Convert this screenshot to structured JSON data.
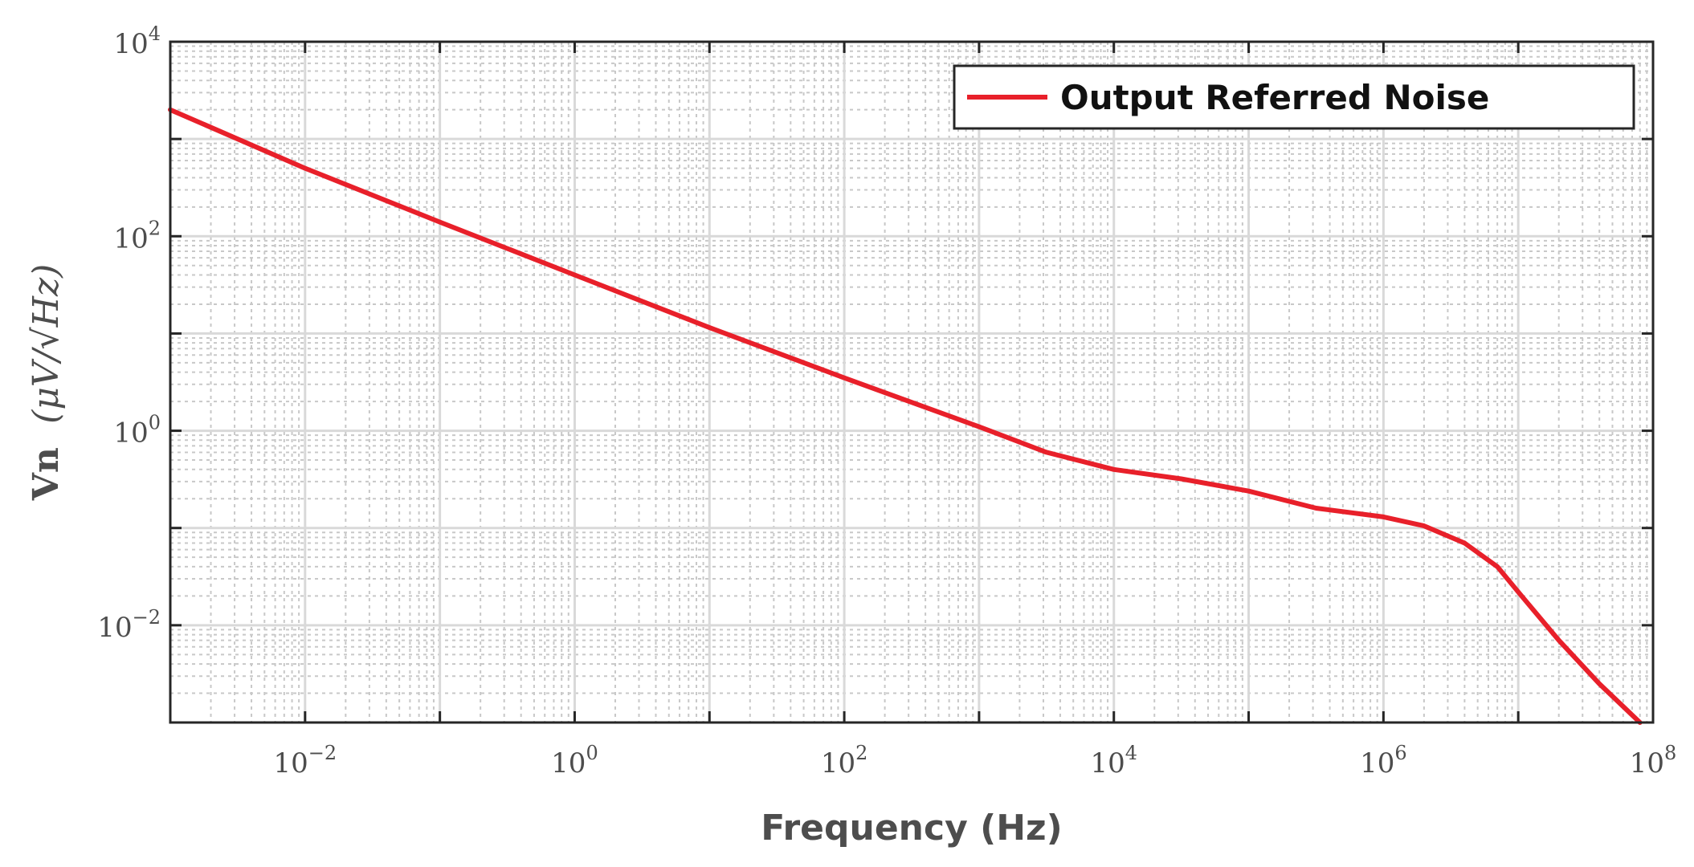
{
  "chart_data": {
    "type": "line",
    "xscale": "log",
    "yscale": "log",
    "xlim": [
      0.001,
      100000000
    ],
    "ylim": [
      0.001,
      10000
    ],
    "xlabel": "Frequency (Hz)",
    "ylabel_main": "Vn",
    "ylabel_math": "(μV/√Hz)",
    "grid": true,
    "minor_grid": true,
    "legend_position": "top-right",
    "x_ticks": [
      {
        "base": "10",
        "exp": "−2",
        "value": 0.01
      },
      {
        "base": "10",
        "exp": "0",
        "value": 1
      },
      {
        "base": "10",
        "exp": "2",
        "value": 100
      },
      {
        "base": "10",
        "exp": "4",
        "value": 10000
      },
      {
        "base": "10",
        "exp": "6",
        "value": 1000000
      },
      {
        "base": "10",
        "exp": "8",
        "value": 100000000
      }
    ],
    "y_ticks": [
      {
        "base": "10",
        "exp": "−2",
        "value": 0.01
      },
      {
        "base": "10",
        "exp": "0",
        "value": 1
      },
      {
        "base": "10",
        "exp": "2",
        "value": 100
      },
      {
        "base": "10",
        "exp": "4",
        "value": 10000
      }
    ],
    "series": [
      {
        "name": "Output Referred Noise",
        "color": "#e8202a",
        "x": [
          0.001,
          0.01,
          0.1,
          1,
          10,
          100,
          1000,
          3162,
          10000,
          31623,
          100000,
          316228,
          1000000,
          2000000,
          4000000,
          7000000,
          10000000,
          20000000,
          40000000,
          80000000
        ],
        "y": [
          2000,
          500,
          140,
          40,
          11.5,
          3.5,
          1.1,
          0.6,
          0.4,
          0.32,
          0.24,
          0.16,
          0.13,
          0.105,
          0.07,
          0.04,
          0.022,
          0.007,
          0.0025,
          0.001
        ]
      }
    ]
  }
}
